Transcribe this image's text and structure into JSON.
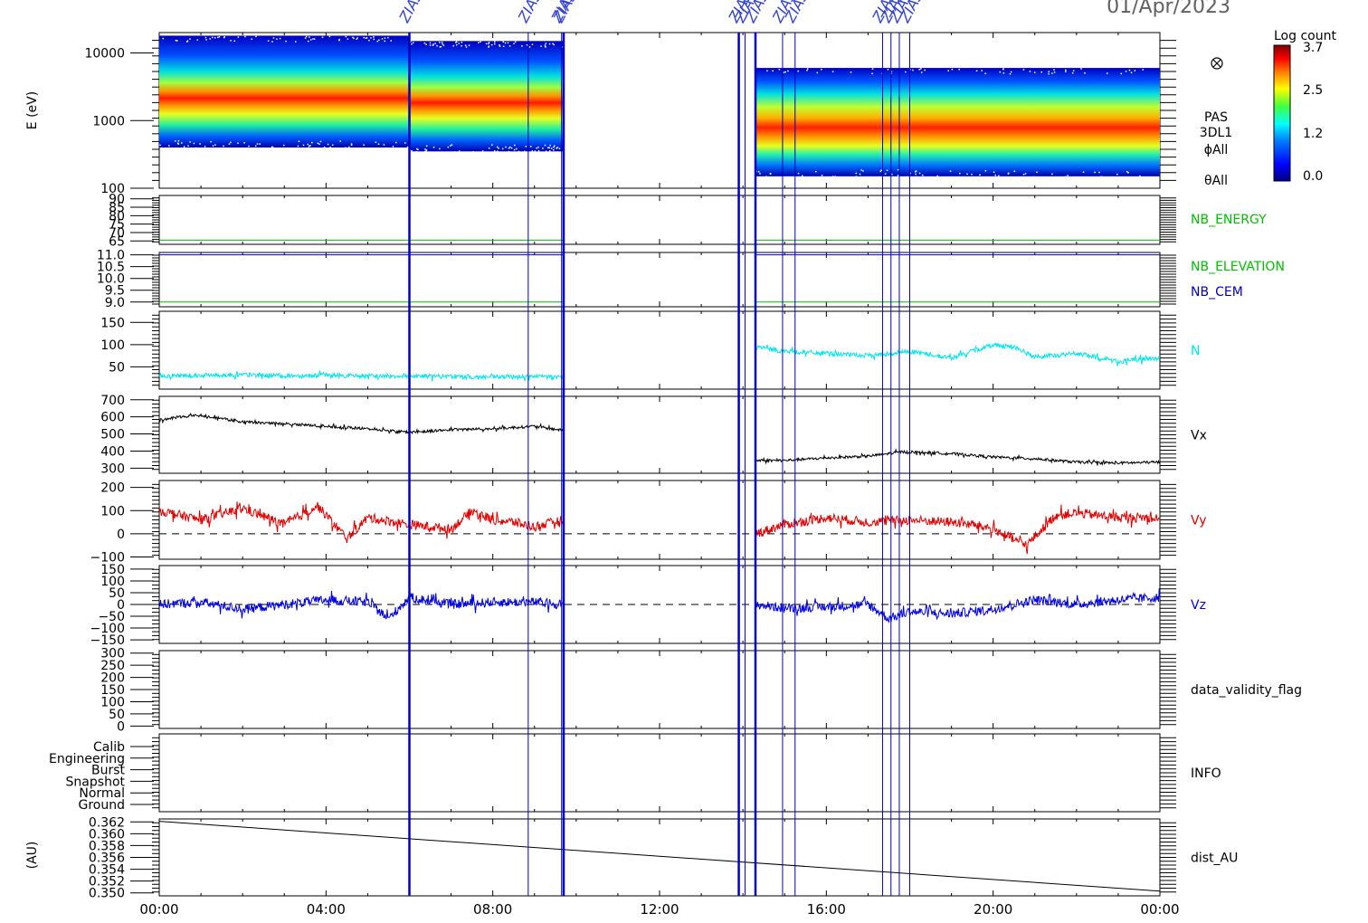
{
  "header": {
    "date_label": "01/Apr/2023"
  },
  "colorbar": {
    "title": "Log count",
    "ticks": [
      "3.7",
      "2.5",
      "1.2",
      "0.0"
    ],
    "colors": [
      "#000080",
      "#0000ff",
      "#0080ff",
      "#00ffff",
      "#40ff40",
      "#ffff00",
      "#ff8000",
      "#ff0000",
      "#800000"
    ]
  },
  "time_axis": {
    "ticks": [
      "00:00",
      "04:00",
      "08:00",
      "12:00",
      "16:00",
      "20:00",
      "00:00"
    ],
    "range_hours": [
      0,
      24
    ]
  },
  "event_markers": {
    "label": "ZIAS",
    "hours": [
      6.0,
      8.85,
      9.65,
      9.7,
      13.9,
      14.05,
      14.3,
      14.95,
      15.25,
      17.35,
      17.55,
      17.75,
      18.0
    ]
  },
  "chart_data": [
    {
      "type": "heatmap",
      "name": "spectrogram",
      "ylabel": "E (eV)",
      "yscale": "log",
      "ylim": [
        100,
        20000
      ],
      "yticks": [
        "10000",
        "1000",
        "100"
      ],
      "right_labels": [
        "PAS",
        "3DL1",
        "ϕAll",
        "θAll"
      ],
      "segments": [
        {
          "start_hour": 0.0,
          "end_hour": 6.0,
          "e_min": 400,
          "e_max": 18000,
          "peak_energy": 1800
        },
        {
          "start_hour": 6.0,
          "end_hour": 9.7,
          "e_min": 350,
          "e_max": 15000,
          "peak_energy": 1500
        },
        {
          "start_hour": 14.3,
          "end_hour": 24.0,
          "e_min": 150,
          "e_max": 6000,
          "peak_energy": 700
        }
      ]
    },
    {
      "type": "line",
      "name": "nb-energy",
      "ylim": [
        63,
        92
      ],
      "yticks": [
        "90",
        "85",
        "80",
        "75",
        "70",
        "65"
      ],
      "series": [
        {
          "name": "NB_ENERGY",
          "color": "#00c000",
          "value": 65.5
        }
      ],
      "legend": [
        "NB_ENERGY"
      ]
    },
    {
      "type": "line",
      "name": "nb-elevation-cem",
      "ylim": [
        8.8,
        11.1
      ],
      "yticks": [
        "11.0",
        "10.5",
        "10.0",
        "9.5",
        "9.0"
      ],
      "series": [
        {
          "name": "NB_ELEVATION",
          "color": "#00c000",
          "value": 9.0
        },
        {
          "name": "NB_CEM",
          "color": "#0000c0",
          "value": 11.0
        }
      ],
      "legend": [
        "NB_ELEVATION",
        "NB_CEM"
      ]
    },
    {
      "type": "line",
      "name": "density",
      "ylim": [
        0,
        175
      ],
      "yticks": [
        "150",
        "100",
        "50"
      ],
      "series": [
        {
          "name": "N",
          "color": "#00e5ee",
          "segments": [
            {
              "hours": [
                0,
                1,
                2,
                3,
                4,
                5,
                6,
                7,
                8,
                9,
                9.7
              ],
              "values": [
                30,
                31,
                32,
                30,
                31,
                29,
                30,
                28,
                27,
                28,
                27
              ]
            },
            {
              "hours": [
                14.3,
                15,
                16,
                17,
                18,
                19,
                20,
                20.5,
                21,
                22,
                23,
                24
              ],
              "values": [
                95,
                85,
                80,
                75,
                85,
                70,
                100,
                95,
                72,
                80,
                62,
                70
              ]
            }
          ]
        }
      ],
      "legend": [
        "N"
      ]
    },
    {
      "type": "line",
      "name": "velocity-x",
      "ylim": [
        270,
        720
      ],
      "yticks": [
        "700",
        "600",
        "500",
        "400",
        "300"
      ],
      "series": [
        {
          "name": "Vx",
          "color": "#000000",
          "segments": [
            {
              "hours": [
                0,
                0.5,
                1,
                2,
                3,
                4,
                5,
                6,
                7,
                8,
                9,
                9.7
              ],
              "values": [
                580,
                600,
                610,
                570,
                560,
                545,
                530,
                510,
                525,
                530,
                545,
                520
              ]
            },
            {
              "hours": [
                14.3,
                15,
                16,
                17,
                17.8,
                18.5,
                19,
                20,
                21,
                22,
                23,
                24
              ],
              "values": [
                345,
                345,
                360,
                370,
                395,
                390,
                385,
                365,
                355,
                335,
                330,
                335
              ]
            }
          ]
        }
      ],
      "legend": [
        "Vx"
      ]
    },
    {
      "type": "line",
      "name": "velocity-y",
      "ylim": [
        -110,
        230
      ],
      "yticks": [
        "200",
        "100",
        "0",
        "−100"
      ],
      "zero_line": true,
      "series": [
        {
          "name": "Vy",
          "color": "#e00000",
          "segments": [
            {
              "hours": [
                0,
                1,
                2,
                3,
                3.8,
                4.5,
                5,
                6,
                7,
                7.5,
                8,
                8.5,
                9,
                9.7
              ],
              "values": [
                100,
                60,
                110,
                40,
                120,
                -20,
                70,
                40,
                20,
                100,
                60,
                50,
                30,
                60
              ]
            },
            {
              "hours": [
                14.3,
                15,
                16,
                17,
                18,
                19,
                19.5,
                20,
                20.8,
                21.5,
                22,
                23,
                24
              ],
              "values": [
                0,
                40,
                70,
                50,
                60,
                50,
                40,
                20,
                -50,
                80,
                90,
                70,
                70
              ]
            }
          ]
        }
      ],
      "legend": [
        "Vy"
      ]
    },
    {
      "type": "line",
      "name": "velocity-z",
      "ylim": [
        -165,
        165
      ],
      "yticks": [
        "150",
        "100",
        "50",
        "0",
        "−50",
        "−100",
        "−150"
      ],
      "zero_line": true,
      "series": [
        {
          "name": "Vz",
          "color": "#0000e0",
          "segments": [
            {
              "hours": [
                0,
                1,
                2,
                3,
                4,
                5,
                5.5,
                6,
                7,
                8,
                9,
                9.7
              ],
              "values": [
                0,
                10,
                -20,
                0,
                20,
                10,
                -60,
                30,
                0,
                10,
                10,
                0
              ]
            },
            {
              "hours": [
                14.3,
                15,
                16,
                17,
                17.5,
                18,
                19,
                20,
                21,
                22,
                23,
                24
              ],
              "values": [
                0,
                -15,
                -10,
                0,
                -60,
                -30,
                -40,
                -20,
                20,
                0,
                20,
                30
              ]
            }
          ]
        }
      ],
      "legend": [
        "Vz"
      ]
    },
    {
      "type": "line",
      "name": "validity",
      "ylim": [
        -10,
        310
      ],
      "yticks": [
        "300",
        "250",
        "200",
        "150",
        "100",
        "50",
        "0"
      ],
      "series": [],
      "legend": [
        "data_validity_flag"
      ]
    },
    {
      "type": "line",
      "name": "info",
      "categorical": true,
      "yticks": [
        "Calib",
        "Engineering",
        "Burst",
        "Snapshot",
        "Normal",
        "Ground"
      ],
      "series": [],
      "legend": [
        "INFO"
      ]
    },
    {
      "type": "line",
      "name": "distance",
      "ylabel": "(AU)",
      "ylim": [
        0.3495,
        0.3625
      ],
      "yticks": [
        "0.362",
        "0.360",
        "0.358",
        "0.356",
        "0.354",
        "0.352",
        "0.350"
      ],
      "series": [
        {
          "name": "dist_AU",
          "color": "#000000",
          "segments": [
            {
              "hours": [
                0,
                24
              ],
              "values": [
                0.3621,
                0.3503
              ]
            }
          ]
        }
      ],
      "legend": [
        "dist_AU"
      ]
    }
  ]
}
